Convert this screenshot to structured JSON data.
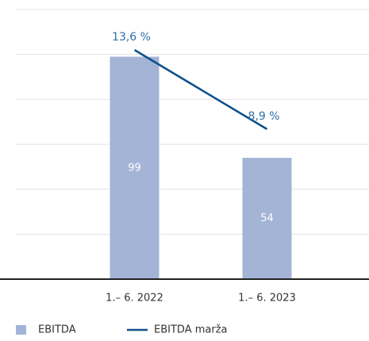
{
  "chart_data": {
    "type": "bar+line",
    "categories": [
      "1.– 6. 2022",
      "1.– 6. 2023"
    ],
    "series": [
      {
        "name": "EBITDA",
        "type": "bar",
        "color": "#a3b4d6",
        "values": [
          99,
          54
        ]
      },
      {
        "name": "EBITDA marža",
        "type": "line",
        "axis": "y2",
        "color": "#0d4f8b",
        "values": [
          13.6,
          8.9
        ],
        "value_labels": [
          "13,6 %",
          "8,9 %"
        ]
      }
    ],
    "ylim": [
      0,
      120
    ],
    "yticks": [
      0,
      20,
      40,
      60,
      80,
      100,
      120
    ],
    "y2lim": [
      0,
      16
    ],
    "grid": true,
    "legend": "bottom"
  }
}
